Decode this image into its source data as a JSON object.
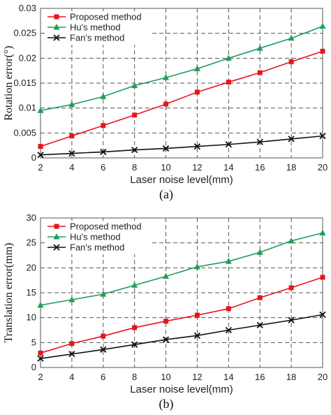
{
  "chart_data": [
    {
      "type": "line",
      "panel_label": "(a)",
      "xlabel": "Laser noise level(mm)",
      "ylabel": "Rotation error(°)",
      "x": [
        2,
        4,
        6,
        8,
        10,
        12,
        14,
        16,
        18,
        20
      ],
      "xlim": [
        2,
        20
      ],
      "ylim": [
        0,
        0.03
      ],
      "yticks": [
        0,
        0.005,
        0.01,
        0.015,
        0.02,
        0.025,
        0.03
      ],
      "ytick_labels": [
        "0",
        "0.005",
        "0.01",
        "0.015",
        "0.02",
        "0.025",
        "0.03"
      ],
      "grid": true,
      "legend_position": "top-left",
      "series": [
        {
          "name": "Proposed method",
          "color": "#e8141b",
          "marker": "square",
          "values": [
            0.0023,
            0.0044,
            0.0065,
            0.0086,
            0.0108,
            0.0132,
            0.0152,
            0.0171,
            0.0193,
            0.0214
          ]
        },
        {
          "name": "Hu's method",
          "color": "#1e9e5a",
          "marker": "triangle",
          "values": [
            0.0095,
            0.0107,
            0.0123,
            0.0145,
            0.0161,
            0.0179,
            0.02,
            0.022,
            0.024,
            0.0264
          ]
        },
        {
          "name": "Fan's method",
          "color": "#111111",
          "marker": "x",
          "values": [
            0.0006,
            0.0009,
            0.0012,
            0.0016,
            0.0019,
            0.0023,
            0.0027,
            0.0032,
            0.0038,
            0.0044
          ]
        }
      ]
    },
    {
      "type": "line",
      "panel_label": "(b)",
      "xlabel": "Laser noise level(mm)",
      "ylabel": "Translation error(mm)",
      "x": [
        2,
        4,
        6,
        8,
        10,
        12,
        14,
        16,
        18,
        20
      ],
      "xlim": [
        2,
        20
      ],
      "ylim": [
        0,
        30
      ],
      "yticks": [
        0,
        5,
        10,
        15,
        20,
        25,
        30
      ],
      "ytick_labels": [
        "0",
        "5",
        "10",
        "15",
        "20",
        "25",
        "30"
      ],
      "grid": true,
      "legend_position": "top-left",
      "series": [
        {
          "name": "Proposed method",
          "color": "#e8141b",
          "marker": "square",
          "values": [
            2.9,
            4.8,
            6.3,
            8.0,
            9.3,
            10.5,
            11.8,
            14.0,
            16.0,
            18.1
          ]
        },
        {
          "name": "Hu's method",
          "color": "#1e9e5a",
          "marker": "triangle",
          "values": [
            12.5,
            13.6,
            14.7,
            16.5,
            18.3,
            20.2,
            21.3,
            23.1,
            25.4,
            27.0
          ]
        },
        {
          "name": "Fan's method",
          "color": "#111111",
          "marker": "x",
          "values": [
            1.8,
            2.7,
            3.6,
            4.6,
            5.6,
            6.4,
            7.5,
            8.5,
            9.5,
            10.6
          ]
        }
      ]
    }
  ]
}
